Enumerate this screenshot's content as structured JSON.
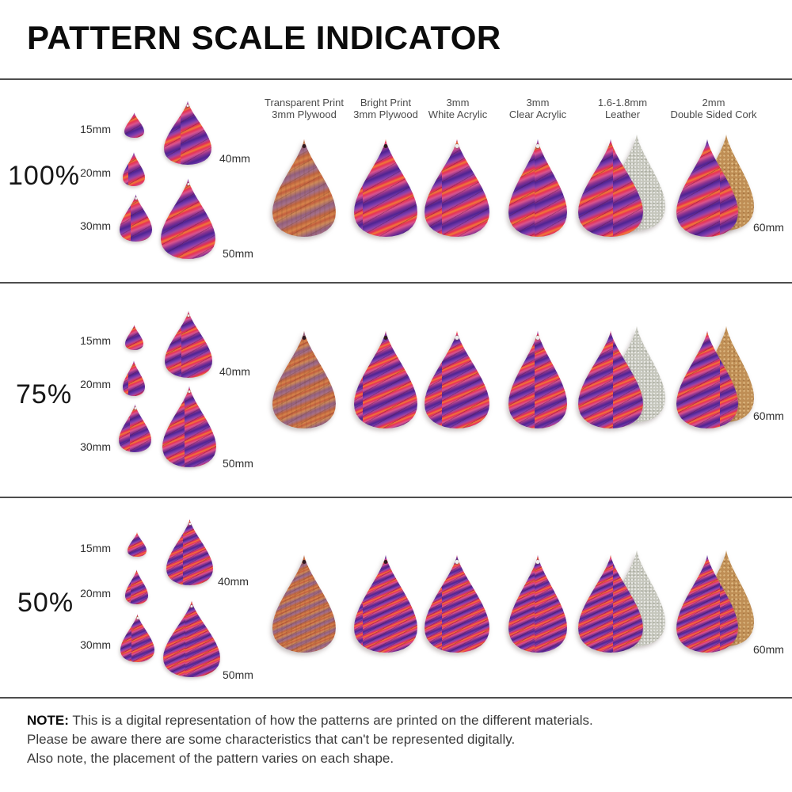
{
  "title": "PATTERN SCALE INDICATOR",
  "columns": [
    {
      "key": "transparent-plywood",
      "line1": "Transparent Print",
      "line2": "3mm Plywood"
    },
    {
      "key": "bright-plywood",
      "line1": "Bright Print",
      "line2": "3mm Plywood"
    },
    {
      "key": "white-acrylic",
      "line1": "3mm",
      "line2": "White Acrylic"
    },
    {
      "key": "clear-acrylic",
      "line1": "3mm",
      "line2": "Clear Acrylic"
    },
    {
      "key": "leather",
      "line1": "1.6-1.8mm",
      "line2": "Leather"
    },
    {
      "key": "double-sided-cork",
      "line1": "2mm",
      "line2": "Double Sided Cork"
    }
  ],
  "rows": [
    {
      "scale": "100%",
      "sizes": [
        "15mm",
        "20mm",
        "30mm",
        "40mm",
        "50mm"
      ],
      "main_size": "60mm"
    },
    {
      "scale": "75%",
      "sizes": [
        "15mm",
        "20mm",
        "30mm",
        "40mm",
        "50mm"
      ],
      "main_size": "60mm"
    },
    {
      "scale": "50%",
      "sizes": [
        "15mm",
        "20mm",
        "30mm",
        "40mm",
        "50mm"
      ],
      "main_size": "60mm"
    }
  ],
  "note": {
    "label": "NOTE:",
    "line1": "This is a digital representation of how the patterns are printed on the different materials.",
    "line2": "Please be aware there are some characteristics that can't be represented digitally.",
    "line3": "Also note, the placement of the pattern varies on each shape."
  },
  "colors": {
    "pattern_purple": "#4e2492",
    "pattern_red": "#e22d55",
    "pattern_orange": "#f07a36",
    "pattern_pink": "#d9548e",
    "plywood_base": "#c0653f",
    "leather_back": "#c6c7bd",
    "cork_back": "#bf8e55",
    "divider": "#4d4d4d"
  }
}
